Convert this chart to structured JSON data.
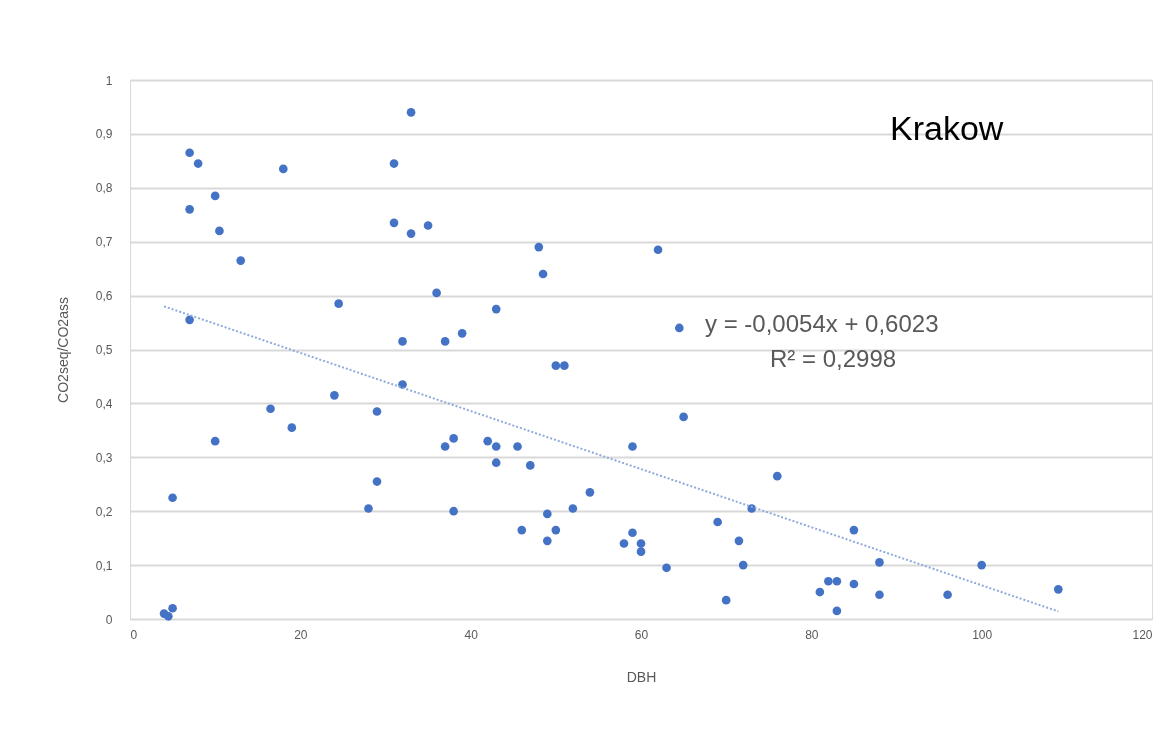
{
  "chart_data": {
    "type": "scatter",
    "xlabel": "DBH",
    "ylabel": "CO2seq/CO2ass",
    "annotations": [
      "Krakow",
      "y = -0,0054x + 0,6023",
      "R² = 0,2998"
    ],
    "series": [
      {
        "color": "#4472c4",
        "marker": "circle",
        "x": [
          4,
          4.5,
          5,
          5,
          7,
          8,
          7,
          10,
          10.5,
          7,
          10,
          13,
          16.5,
          18,
          19,
          24,
          24.5,
          28,
          29,
          29,
          31,
          31,
          32,
          32,
          33,
          33,
          35,
          36,
          37,
          37,
          38,
          38,
          39,
          42,
          43,
          43,
          43,
          45.5,
          46,
          47,
          48,
          48.5,
          49,
          49,
          50,
          50,
          51,
          52,
          54,
          58,
          59,
          59,
          60,
          60,
          62,
          63,
          64.5,
          65,
          69,
          70,
          71.5,
          72,
          73,
          76,
          81,
          82,
          83,
          83,
          85,
          85,
          88,
          88,
          96,
          100,
          109
        ],
        "values": [
          0.01,
          0.005,
          0.02,
          0.225,
          0.865,
          0.845,
          0.76,
          0.785,
          0.72,
          0.555,
          0.33,
          0.665,
          0.39,
          0.835,
          0.355,
          0.415,
          0.585,
          0.205,
          0.385,
          0.255,
          0.845,
          0.735,
          0.515,
          0.435,
          0.94,
          0.715,
          0.73,
          0.605,
          0.32,
          0.515,
          0.335,
          0.2,
          0.53,
          0.33,
          0.32,
          0.29,
          0.575,
          0.32,
          0.165,
          0.285,
          0.69,
          0.64,
          0.145,
          0.195,
          0.165,
          0.47,
          0.47,
          0.205,
          0.235,
          0.14,
          0.32,
          0.16,
          0.14,
          0.125,
          0.685,
          0.095,
          0.54,
          0.375,
          0.18,
          0.035,
          0.145,
          0.1,
          0.205,
          0.265,
          0.05,
          0.07,
          0.07,
          0.015,
          0.165,
          0.065,
          0.105,
          0.045,
          0.045,
          0.1,
          0.055
        ]
      },
      {
        "type": "line",
        "color": "#8faadc",
        "line_style": "dotted",
        "x": [
          4,
          109
        ],
        "values": [
          0.58,
          0.014
        ]
      }
    ],
    "xlim": [
      0,
      120
    ],
    "xticks": [
      0,
      20,
      40,
      60,
      80,
      100,
      120
    ],
    "ylim": [
      0,
      1
    ],
    "yticks": [
      0,
      {
        "value": 0.1,
        "label": "0,1"
      },
      {
        "value": 0.2,
        "label": "0,2"
      },
      {
        "value": 0.3,
        "label": "0,3"
      },
      {
        "value": 0.4,
        "label": "0,4"
      },
      {
        "value": 0.5,
        "label": "0,5"
      },
      {
        "value": 0.6,
        "label": "0,6"
      },
      {
        "value": 0.7,
        "label": "0,7"
      },
      {
        "value": 0.8,
        "label": "0,8"
      },
      {
        "value": 0.9,
        "label": "0,9"
      },
      1
    ],
    "grid": "y",
    "legend": false
  }
}
